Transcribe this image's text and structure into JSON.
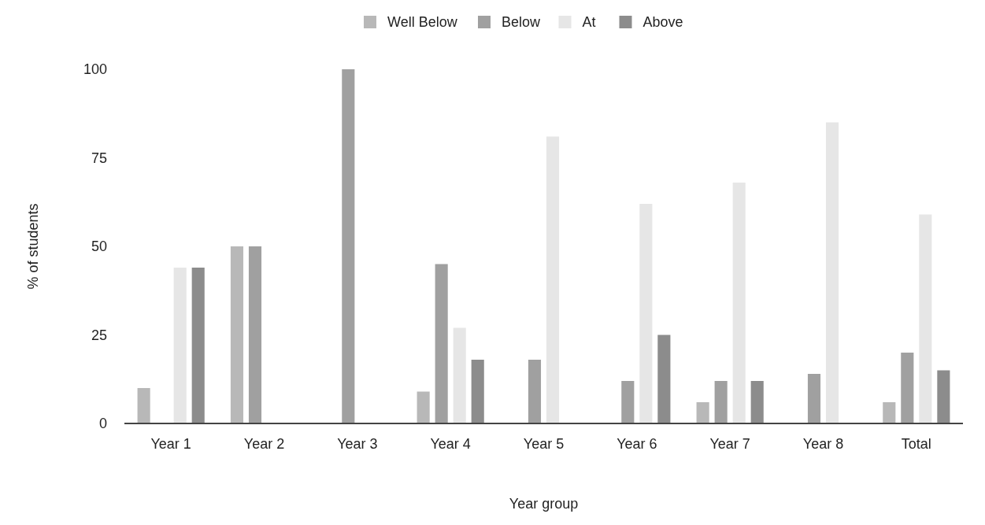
{
  "chart_data": {
    "type": "bar",
    "xlabel": "Year group",
    "ylabel": "% of students",
    "categories": [
      "Year 1",
      "Year 2",
      "Year 3",
      "Year 4",
      "Year 5",
      "Year 6",
      "Year 7",
      "Year 8",
      "Total"
    ],
    "series": [
      {
        "name": "Well Below",
        "color": "#b8b8b8",
        "values": [
          10,
          50,
          0,
          9,
          0,
          0,
          6,
          0,
          6
        ]
      },
      {
        "name": "Below",
        "color": "#a0a0a0",
        "values": [
          0,
          50,
          100,
          45,
          18,
          12,
          12,
          14,
          20
        ]
      },
      {
        "name": "At",
        "color": "#e6e6e6",
        "values": [
          44,
          0,
          0,
          27,
          81,
          62,
          68,
          85,
          59
        ]
      },
      {
        "name": "Above",
        "color": "#8c8c8c",
        "values": [
          44,
          0,
          0,
          18,
          0,
          25,
          12,
          0,
          15
        ]
      }
    ],
    "ylim": [
      0,
      100
    ],
    "yticks": [
      0,
      25,
      50,
      75,
      100
    ],
    "legend": "top"
  }
}
